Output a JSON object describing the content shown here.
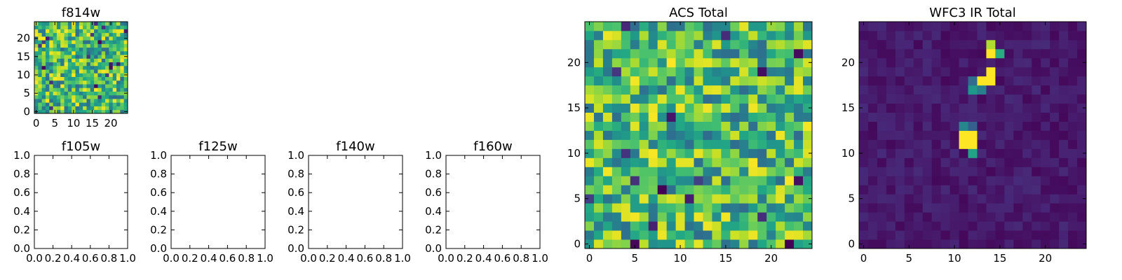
{
  "colormap": "viridis",
  "chart_data": [
    {
      "id": "f814w",
      "type": "heatmap",
      "title": "f814w",
      "grid": {
        "rows": 25,
        "cols": 25,
        "texture": "noise",
        "seed": 11
      },
      "xticks": [
        "0",
        "5",
        "10",
        "15",
        "20"
      ],
      "yticks": [
        "0",
        "5",
        "10",
        "15",
        "20"
      ],
      "xlim": [
        -0.5,
        24.5
      ],
      "ylim": [
        -0.5,
        24.5
      ]
    },
    {
      "id": "f105w",
      "type": "empty",
      "title": "f105w",
      "xticks": [
        "0.0",
        "0.2",
        "0.4",
        "0.6",
        "0.8",
        "1.0"
      ],
      "yticks": [
        "0.0",
        "0.2",
        "0.4",
        "0.6",
        "0.8",
        "1.0"
      ],
      "xlim": [
        0,
        1
      ],
      "ylim": [
        0,
        1
      ]
    },
    {
      "id": "f125w",
      "type": "empty",
      "title": "f125w",
      "xticks": [
        "0.0",
        "0.2",
        "0.4",
        "0.6",
        "0.8",
        "1.0"
      ],
      "yticks": [
        "0.0",
        "0.2",
        "0.4",
        "0.6",
        "0.8",
        "1.0"
      ],
      "xlim": [
        0,
        1
      ],
      "ylim": [
        0,
        1
      ]
    },
    {
      "id": "f140w",
      "type": "empty",
      "title": "f140w",
      "xticks": [
        "0.0",
        "0.2",
        "0.4",
        "0.6",
        "0.8",
        "1.0"
      ],
      "yticks": [
        "0.0",
        "0.2",
        "0.4",
        "0.6",
        "0.8",
        "1.0"
      ],
      "xlim": [
        0,
        1
      ],
      "ylim": [
        0,
        1
      ]
    },
    {
      "id": "f160w",
      "type": "empty",
      "title": "f160w",
      "xticks": [
        "0.0",
        "0.2",
        "0.4",
        "0.6",
        "0.8",
        "1.0"
      ],
      "yticks": [
        "0.0",
        "0.2",
        "0.4",
        "0.6",
        "0.8",
        "1.0"
      ],
      "xlim": [
        0,
        1
      ],
      "ylim": [
        0,
        1
      ]
    },
    {
      "id": "acs-total",
      "type": "heatmap",
      "title": "ACS Total",
      "grid": {
        "rows": 25,
        "cols": 25,
        "texture": "noise",
        "seed": 29
      },
      "xticks": [
        "0",
        "5",
        "10",
        "15",
        "20"
      ],
      "yticks": [
        "0",
        "5",
        "10",
        "15",
        "20"
      ],
      "xlim": [
        -0.5,
        24.5
      ],
      "ylim": [
        -0.5,
        24.5
      ]
    },
    {
      "id": "wfc3-ir-total",
      "type": "heatmap",
      "title": "WFC3 IR Total",
      "grid": {
        "rows": 25,
        "cols": 25,
        "texture": "faint",
        "seed": 53,
        "bright_cells": [
          {
            "x": 11,
            "y": 11,
            "v": 1.0
          },
          {
            "x": 12,
            "y": 11,
            "v": 1.0
          },
          {
            "x": 11,
            "y": 12,
            "v": 1.0
          },
          {
            "x": 12,
            "y": 12,
            "v": 1.0
          },
          {
            "x": 11,
            "y": 13,
            "v": 0.45
          },
          {
            "x": 12,
            "y": 13,
            "v": 0.3
          },
          {
            "x": 12,
            "y": 10,
            "v": 0.58
          },
          {
            "x": 13,
            "y": 18,
            "v": 1.0
          },
          {
            "x": 14,
            "y": 18,
            "v": 1.0
          },
          {
            "x": 14,
            "y": 19,
            "v": 1.0
          },
          {
            "x": 12,
            "y": 17,
            "v": 0.52
          },
          {
            "x": 13,
            "y": 17,
            "v": 0.42
          },
          {
            "x": 12,
            "y": 18,
            "v": 0.35
          },
          {
            "x": 14,
            "y": 21,
            "v": 1.0
          },
          {
            "x": 14,
            "y": 22,
            "v": 0.88
          },
          {
            "x": 15,
            "y": 21,
            "v": 0.62
          }
        ]
      },
      "xticks": [
        "0",
        "5",
        "10",
        "15",
        "20"
      ],
      "yticks": [
        "0",
        "5",
        "10",
        "15",
        "20"
      ],
      "xlim": [
        -0.5,
        24.5
      ],
      "ylim": [
        -0.5,
        24.5
      ]
    }
  ]
}
